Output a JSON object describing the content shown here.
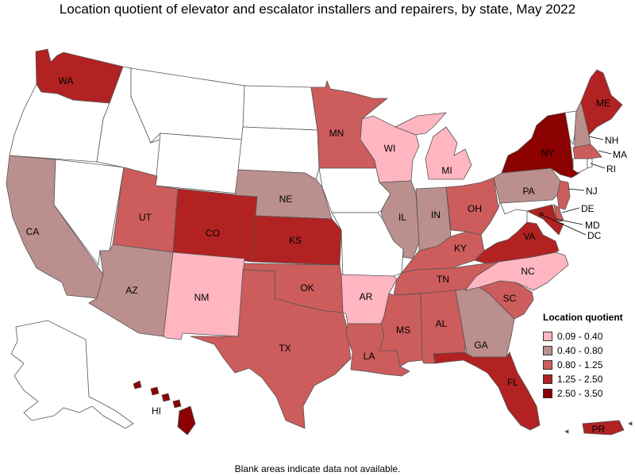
{
  "title": "Location quotient of elevator and escalator installers and repairers, by state, May 2022",
  "footnote": "Blank areas indicate data not available.",
  "legend": {
    "title": "Location quotient",
    "items": [
      {
        "label": "0.09 - 0.40",
        "color": "#ffb6c1"
      },
      {
        "label": "0.40 - 0.80",
        "color": "#bc8f8f"
      },
      {
        "label": "0.80 - 1.25",
        "color": "#cd5c5c"
      },
      {
        "label": "1.25 - 2.50",
        "color": "#b22222"
      },
      {
        "label": "2.50 - 3.50",
        "color": "#8b0000"
      }
    ]
  },
  "states": {
    "WA": {
      "label": "WA",
      "class": 3
    },
    "OR": {
      "label": "",
      "class": -1
    },
    "CA": {
      "label": "CA",
      "class": 1
    },
    "NV": {
      "label": "",
      "class": -1
    },
    "ID": {
      "label": "",
      "class": -1
    },
    "MT": {
      "label": "",
      "class": -1
    },
    "WY": {
      "label": "",
      "class": -1
    },
    "UT": {
      "label": "UT",
      "class": 2
    },
    "AZ": {
      "label": "AZ",
      "class": 1
    },
    "CO": {
      "label": "CO",
      "class": 3
    },
    "NM": {
      "label": "NM",
      "class": 0
    },
    "ND": {
      "label": "",
      "class": -1
    },
    "SD": {
      "label": "",
      "class": -1
    },
    "NE": {
      "label": "NE",
      "class": 1
    },
    "KS": {
      "label": "KS",
      "class": 3
    },
    "OK": {
      "label": "OK",
      "class": 2
    },
    "TX": {
      "label": "TX",
      "class": 2
    },
    "MN": {
      "label": "MN",
      "class": 2
    },
    "IA": {
      "label": "",
      "class": -1
    },
    "MO": {
      "label": "",
      "class": -1
    },
    "AR": {
      "label": "AR",
      "class": 0
    },
    "LA": {
      "label": "LA",
      "class": 2
    },
    "WI": {
      "label": "WI",
      "class": 0
    },
    "IL": {
      "label": "IL",
      "class": 1
    },
    "MI": {
      "label": "MI",
      "class": 0
    },
    "IN": {
      "label": "IN",
      "class": 1
    },
    "OH": {
      "label": "OH",
      "class": 2
    },
    "KY": {
      "label": "KY",
      "class": 2
    },
    "TN": {
      "label": "TN",
      "class": 2
    },
    "MS": {
      "label": "MS",
      "class": 2
    },
    "AL": {
      "label": "AL",
      "class": 2
    },
    "GA": {
      "label": "GA",
      "class": 1
    },
    "FL": {
      "label": "FL",
      "class": 3
    },
    "SC": {
      "label": "SC",
      "class": 2
    },
    "NC": {
      "label": "NC",
      "class": 0
    },
    "VA": {
      "label": "VA",
      "class": 3
    },
    "WV": {
      "label": "",
      "class": -1
    },
    "PA": {
      "label": "PA",
      "class": 1
    },
    "NY": {
      "label": "NY",
      "class": 4
    },
    "VT": {
      "label": "",
      "class": -1
    },
    "NH": {
      "label": "NH",
      "class": 1
    },
    "ME": {
      "label": "ME",
      "class": 3
    },
    "MA": {
      "label": "MA",
      "class": 2
    },
    "RI": {
      "label": "RI",
      "class": -1
    },
    "CT": {
      "label": "",
      "class": -1
    },
    "NJ": {
      "label": "NJ",
      "class": 2
    },
    "DE": {
      "label": "DE",
      "class": 2
    },
    "MD": {
      "label": "MD",
      "class": 3
    },
    "DC": {
      "label": "DC",
      "class": 4
    },
    "AK": {
      "label": "",
      "class": -1
    },
    "HI": {
      "label": "HI",
      "class": 4
    },
    "PR": {
      "label": "PR",
      "class": 3
    }
  }
}
